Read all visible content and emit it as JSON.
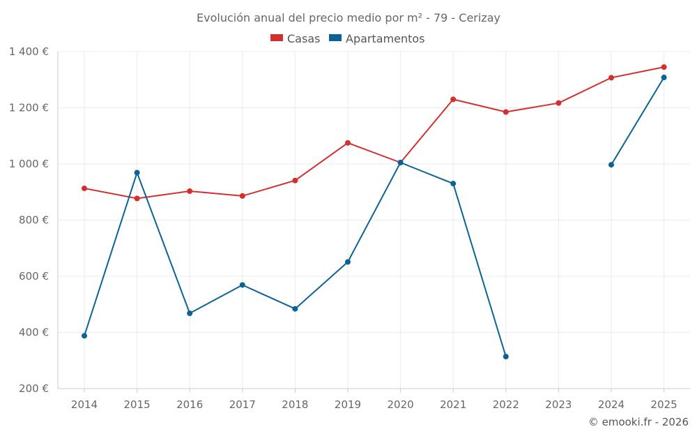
{
  "chart_data": {
    "type": "line",
    "title": "Evolución anual del precio medio por m² - 79 - Cerizay",
    "xlabel": "",
    "ylabel": "",
    "categories": [
      "2014",
      "2015",
      "2016",
      "2017",
      "2018",
      "2019",
      "2020",
      "2021",
      "2022",
      "2023",
      "2024",
      "2025"
    ],
    "ylim": [
      200,
      1400
    ],
    "yticks": [
      200,
      400,
      600,
      800,
      1000,
      1200,
      1400
    ],
    "ytick_labels": [
      "200 €",
      "400 €",
      "600 €",
      "800 €",
      "1 000 €",
      "1 200 €",
      "1 400 €"
    ],
    "grid": true,
    "legend_position": "top-center",
    "series": [
      {
        "name": "Casas",
        "color": "#d32f2f",
        "values": [
          913,
          877,
          903,
          886,
          941,
          1075,
          1005,
          1230,
          1185,
          1217,
          1307,
          1345
        ]
      },
      {
        "name": "Apartamentos",
        "color": "#0b6394",
        "values": [
          388,
          969,
          468,
          569,
          484,
          651,
          1005,
          930,
          314,
          null,
          997,
          1308
        ]
      }
    ]
  },
  "credit": "© emooki.fr - 2026"
}
